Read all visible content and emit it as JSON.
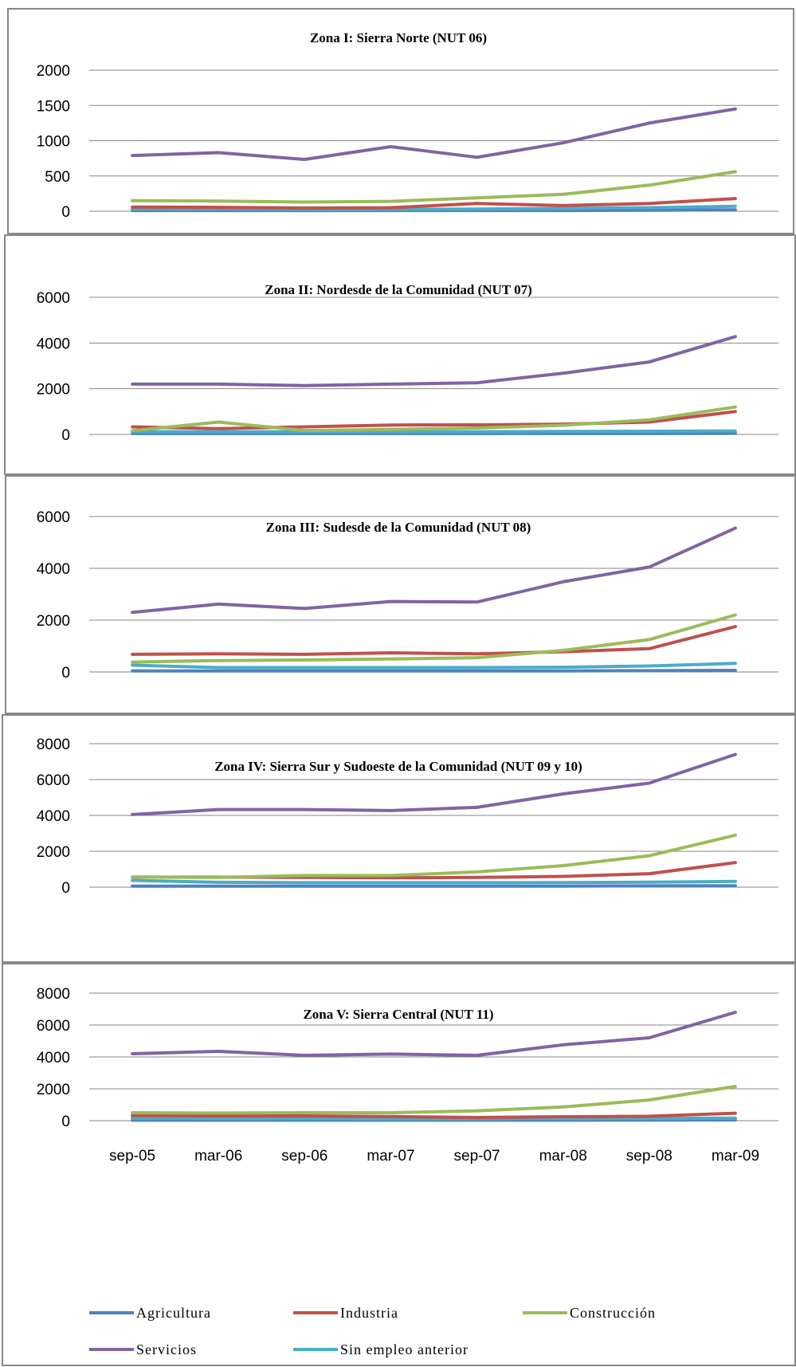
{
  "chart_data": {
    "type": "line",
    "categories": [
      "sep-05",
      "mar-06",
      "sep-06",
      "mar-07",
      "sep-07",
      "mar-08",
      "sep-08",
      "mar-09"
    ],
    "legend": {
      "placement": "bottom",
      "entries": [
        {
          "name": "Agricultura",
          "color": "#4F81BD"
        },
        {
          "name": "Industria",
          "color": "#C0504D"
        },
        {
          "name": "Construcción",
          "color": "#9BBB59"
        },
        {
          "name": "Servicios",
          "color": "#8064A2"
        },
        {
          "name": "Sin empleo anterior",
          "color": "#4BACC6"
        }
      ]
    },
    "panels": [
      {
        "title": "Zona I: Sierra Norte (NUT 06)",
        "ylim": [
          0,
          2000
        ],
        "yticks": [
          "0",
          "500",
          "1000",
          "1500",
          "2000"
        ],
        "series": [
          {
            "name": "Agricultura",
            "values": [
              10,
              10,
              10,
              10,
              10,
              10,
              15,
              20
            ]
          },
          {
            "name": "Industria",
            "values": [
              60,
              55,
              45,
              50,
              110,
              80,
              110,
              180
            ]
          },
          {
            "name": "Construcción",
            "values": [
              150,
              145,
              130,
              140,
              190,
              240,
              370,
              560
            ]
          },
          {
            "name": "Servicios",
            "values": [
              790,
              830,
              735,
              915,
              765,
              970,
              1250,
              1450
            ]
          },
          {
            "name": "Sin empleo anterior",
            "values": [
              30,
              30,
              25,
              25,
              30,
              40,
              50,
              70
            ]
          }
        ]
      },
      {
        "title": "Zona II: Nordesde de la Comunidad (NUT 07)",
        "ylim": [
          0,
          6000
        ],
        "yticks": [
          "0",
          "2000",
          "4000",
          "6000"
        ],
        "series": [
          {
            "name": "Agricultura",
            "values": [
              40,
              40,
              40,
              40,
              40,
              40,
              40,
              50
            ]
          },
          {
            "name": "Industria",
            "values": [
              330,
              250,
              330,
              410,
              420,
              450,
              540,
              1000
            ]
          },
          {
            "name": "Construcción",
            "values": [
              160,
              540,
              170,
              220,
              280,
              400,
              640,
              1200
            ]
          },
          {
            "name": "Servicios",
            "values": [
              2200,
              2200,
              2140,
              2200,
              2260,
              2680,
              3170,
              4280
            ]
          },
          {
            "name": "Sin empleo anterior",
            "values": [
              120,
              120,
              110,
              110,
              120,
              130,
              140,
              150
            ]
          }
        ]
      },
      {
        "title": "Zona III: Sudesde de la Comunidad (NUT 08)",
        "ylim": [
          0,
          6000
        ],
        "yticks": [
          "0",
          "2000",
          "4000",
          "6000"
        ],
        "series": [
          {
            "name": "Agricultura",
            "values": [
              40,
              40,
              40,
              40,
              40,
              40,
              50,
              60
            ]
          },
          {
            "name": "Industria",
            "values": [
              680,
              700,
              680,
              740,
              700,
              780,
              900,
              1750
            ]
          },
          {
            "name": "Construcción",
            "values": [
              380,
              440,
              460,
              500,
              550,
              830,
              1250,
              2200
            ]
          },
          {
            "name": "Servicios",
            "values": [
              2300,
              2620,
              2450,
              2720,
              2700,
              3480,
              4050,
              5550
            ]
          },
          {
            "name": "Sin empleo anterior",
            "values": [
              260,
              170,
              170,
              170,
              170,
              180,
              230,
              330
            ]
          }
        ]
      },
      {
        "title": "Zona IV: Sierra Sur y Sudoeste de la Comunidad (NUT 09 y 10)",
        "ylim": [
          0,
          8000
        ],
        "yticks": [
          "0",
          "2000",
          "4000",
          "6000",
          "8000"
        ],
        "series": [
          {
            "name": "Agricultura",
            "values": [
              60,
              60,
              60,
              60,
              60,
              60,
              70,
              80
            ]
          },
          {
            "name": "Industria",
            "values": [
              560,
              560,
              540,
              520,
              540,
              600,
              750,
              1370
            ]
          },
          {
            "name": "Construcción",
            "values": [
              570,
              540,
              650,
              650,
              850,
              1200,
              1750,
              2900
            ]
          },
          {
            "name": "Servicios",
            "values": [
              4050,
              4330,
              4330,
              4270,
              4450,
              5200,
              5800,
              7400
            ]
          },
          {
            "name": "Sin empleo anterior",
            "values": [
              380,
              270,
              250,
              250,
              250,
              260,
              280,
              320
            ]
          }
        ]
      },
      {
        "title": "Zona V: Sierra Central (NUT  11)",
        "ylim": [
          0,
          8000
        ],
        "yticks": [
          "0",
          "2000",
          "4000",
          "6000",
          "8000"
        ],
        "series": [
          {
            "name": "Agricultura",
            "values": [
              30,
              30,
              30,
              30,
              30,
              30,
              40,
              50
            ]
          },
          {
            "name": "Industria",
            "values": [
              320,
              300,
              300,
              260,
              200,
              250,
              280,
              470
            ]
          },
          {
            "name": "Construcción",
            "values": [
              500,
              480,
              500,
              500,
              620,
              860,
              1300,
              2150
            ]
          },
          {
            "name": "Servicios",
            "values": [
              4200,
              4350,
              4100,
              4180,
              4100,
              4760,
              5200,
              6800
            ]
          },
          {
            "name": "Sin empleo anterior",
            "values": [
              150,
              140,
              130,
              120,
              120,
              130,
              140,
              160
            ]
          }
        ]
      }
    ]
  }
}
